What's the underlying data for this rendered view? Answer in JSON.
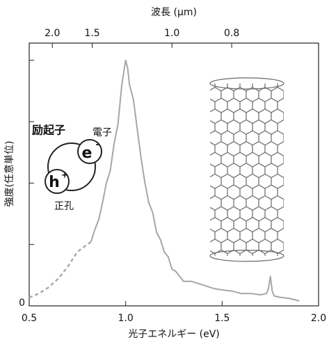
{
  "chart_data": {
    "type": "line",
    "xlabel": "光子エネルギー (eV)",
    "x2label": "波長 (μm)",
    "ylabel": "強度(任意単位)",
    "xlim": [
      0.5,
      2.0
    ],
    "xticks": [
      {
        "value": 0.5,
        "label": "0.5"
      },
      {
        "value": 1.0,
        "label": "1.0"
      },
      {
        "value": 1.5,
        "label": "1.5"
      },
      {
        "value": 2.0,
        "label": "2.0"
      }
    ],
    "x2ticks": [
      {
        "value": 2.0,
        "label": "2.0"
      },
      {
        "value": 1.5,
        "label": "1.5"
      },
      {
        "value": 1.0,
        "label": "1.0"
      },
      {
        "value": 0.8,
        "label": "0.8"
      }
    ],
    "ylim": [
      0,
      1.07
    ],
    "yticks": [
      0
    ],
    "yminor": [
      0.25,
      0.5,
      0.75,
      1.0
    ],
    "series": [
      {
        "color": "#aaaaaa",
        "dashed": true,
        "x": [
          0.5,
          0.55,
          0.6,
          0.65,
          0.7,
          0.75,
          0.8,
          0.82
        ],
        "values": [
          0.034,
          0.05,
          0.075,
          0.11,
          0.16,
          0.22,
          0.25,
          0.26
        ]
      },
      {
        "color": "#a6a6a6",
        "dashed": false,
        "x": [
          0.82,
          0.84,
          0.86,
          0.88,
          0.9,
          0.92,
          0.94,
          0.96,
          0.98,
          0.99,
          1.0,
          1.01,
          1.02,
          1.04,
          1.06,
          1.08,
          1.1,
          1.12,
          1.14,
          1.16,
          1.18,
          1.2,
          1.22,
          1.24,
          1.26,
          1.28,
          1.3,
          1.34,
          1.38,
          1.42,
          1.46,
          1.5,
          1.55,
          1.6,
          1.65,
          1.7,
          1.73,
          1.74,
          1.75,
          1.76,
          1.77,
          1.8,
          1.85,
          1.9
        ],
        "values": [
          0.26,
          0.31,
          0.35,
          0.42,
          0.5,
          0.55,
          0.66,
          0.74,
          0.9,
          0.95,
          1.0,
          0.97,
          0.9,
          0.84,
          0.72,
          0.6,
          0.5,
          0.42,
          0.38,
          0.3,
          0.27,
          0.22,
          0.2,
          0.15,
          0.14,
          0.12,
          0.1,
          0.1,
          0.09,
          0.08,
          0.07,
          0.065,
          0.06,
          0.05,
          0.05,
          0.045,
          0.05,
          0.07,
          0.12,
          0.06,
          0.04,
          0.035,
          0.03,
          0.02
        ]
      }
    ],
    "annotations": {
      "exciton": "励起子",
      "electron": "電子",
      "hole": "正孔",
      "e": "e",
      "e_sup": "-",
      "h": "h",
      "h_sup": "+"
    }
  }
}
